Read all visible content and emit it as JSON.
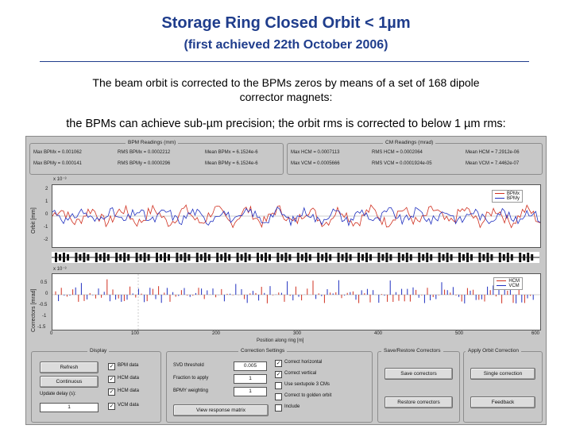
{
  "slide": {
    "title": "Storage Ring Closed Orbit < 1µm",
    "subtitle": "(first achieved 22th October 2006)",
    "line1": "The beam orbit is corrected to the BPMs zeros by means of a set of 168 dipole",
    "line2": "corrector magnets:",
    "line3": "the BPMs can achieve sub-µm precision; the orbit rms is corrected to below 1 µm rms:"
  },
  "gui": {
    "bpm_readings": {
      "title": "BPM Readings (mm)",
      "rows": [
        [
          "Max BPMx = 0.001062",
          "RMS BPMx = 0.0002212",
          "Mean BPMx = 6.1524e-6"
        ],
        [
          "Max BPMy = 0.000141",
          "RMS BPMy = 0.0000296",
          "Mean BPMy = 6.1524e-6"
        ]
      ]
    },
    "cm_readings": {
      "title": "CM Readings (mrad)",
      "rows": [
        [
          "Max HCM = 0.0007113",
          "RMS HCM = 0.0002064",
          "Mean HCM = 7.2912e-06"
        ],
        [
          "Max VCM = 0.0005666",
          "RMS VCM = 0.0001924e-05",
          "Mean VCM = 7.4462e-07"
        ]
      ]
    },
    "plot1": {
      "ylabel": "Orbit [mm]",
      "exp": "x 10⁻³",
      "yticks": [
        "2",
        "1",
        "0",
        "-1",
        "-2"
      ],
      "legend": [
        "BPMx",
        "BPMy"
      ],
      "colors": {
        "x": "#d03020",
        "y": "#2030c0"
      }
    },
    "plot2": {
      "ylabel": "Correctors [mrad]",
      "exp": "x 10⁻³",
      "yticks": [
        "0.5",
        "0",
        "-0.5",
        "-1",
        "-1.5"
      ],
      "legend": [
        "HCM",
        "VCM"
      ],
      "xticks": [
        "0",
        "100",
        "200",
        "300",
        "400",
        "500",
        "600"
      ],
      "xlabel": "Position along ring [m]"
    },
    "display": {
      "title": "Display",
      "buttons": [
        "Refresh",
        "Continuous"
      ],
      "delay_label": "Update delay (s):",
      "delay_value": "1",
      "checks": [
        {
          "label": "BPM data",
          "checked": true
        },
        {
          "label": "HCM data",
          "checked": true
        },
        {
          "label": "HCM data",
          "checked": true
        },
        {
          "label": "VCM data",
          "checked": true
        }
      ]
    },
    "correction_settings": {
      "title": "Correction Settings",
      "fields": [
        {
          "label": "SVD threshold",
          "value": "0.005"
        },
        {
          "label": "Fraction to apply",
          "value": "1"
        },
        {
          "label": "BPMY weighting",
          "value": "1"
        }
      ],
      "checks": [
        {
          "label": "Correct horizontal",
          "checked": true
        },
        {
          "label": "Correct vertical",
          "checked": true
        },
        {
          "label": "Use sextupole 3 CMs",
          "checked": false
        },
        {
          "label": "Correct to golden orbit",
          "checked": false
        },
        {
          "label": "Include",
          "checked": false
        }
      ],
      "view_button": "View response matrix"
    },
    "save_restore": {
      "title": "Save/Restore Correctors",
      "buttons": [
        "Save correctors",
        "Restore correctors"
      ]
    },
    "apply": {
      "title": "Apply Orbit Correction",
      "buttons": [
        "Single correction",
        "Feedback"
      ]
    }
  }
}
